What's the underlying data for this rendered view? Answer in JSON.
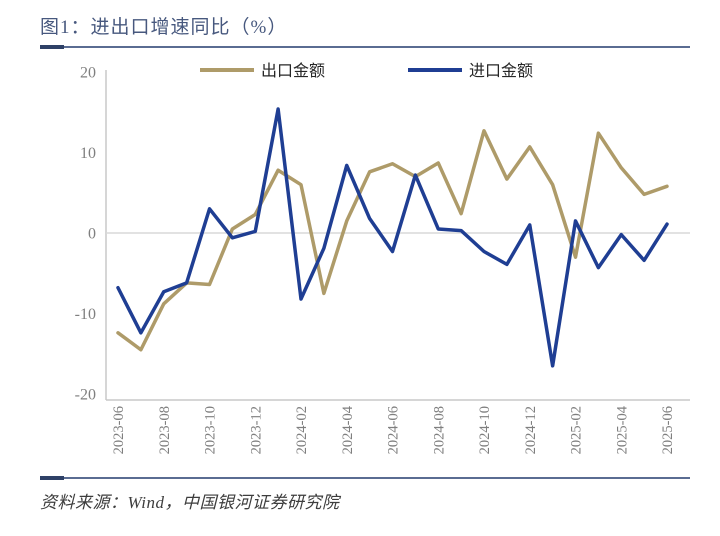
{
  "figure": {
    "title": "图1：进出口增速同比（%）",
    "source": "资料来源：Wind，中国银河证券研究院"
  },
  "legend": {
    "export_label": "出口金额",
    "import_label": "进口金额"
  },
  "colors": {
    "export": "#AE9B69",
    "import": "#1F3E93",
    "title_text": "#47587E",
    "source_text": "#3D3D3D",
    "tick_text": "#7F7F7F",
    "axis_line": "#C8C8C8",
    "zero_line": "#D9D9D9",
    "rule": "#5A6C92"
  },
  "chart_data": {
    "type": "line",
    "title": "进出口增速同比（%）",
    "xlabel": "",
    "ylabel": "",
    "ylim": [
      -20,
      20
    ],
    "yticks": [
      20,
      10,
      0,
      -10,
      -20
    ],
    "grid": "zero-line-only",
    "legend_position": "top",
    "x_tick_step": 2,
    "x": [
      "2023-06",
      "2023-07",
      "2023-08",
      "2023-09",
      "2023-10",
      "2023-11",
      "2023-12",
      "2024-01",
      "2024-02",
      "2024-03",
      "2024-04",
      "2024-05",
      "2024-06",
      "2024-07",
      "2024-08",
      "2024-09",
      "2024-10",
      "2024-11",
      "2024-12",
      "2025-01",
      "2025-02",
      "2025-03",
      "2025-04",
      "2025-05",
      "2025-06"
    ],
    "series": [
      {
        "name": "出口金额",
        "color_key": "export",
        "values": [
          -12.4,
          -14.5,
          -8.8,
          -6.2,
          -6.4,
          0.5,
          2.3,
          7.8,
          6.0,
          -7.5,
          1.5,
          7.6,
          8.6,
          7.0,
          8.7,
          2.4,
          12.7,
          6.7,
          10.7,
          6.0,
          -3.0,
          12.4,
          8.1,
          4.8,
          5.8
        ]
      },
      {
        "name": "进口金额",
        "color_key": "import",
        "values": [
          -6.8,
          -12.4,
          -7.3,
          -6.2,
          3.0,
          -0.6,
          0.2,
          15.4,
          -8.2,
          -1.9,
          8.4,
          1.8,
          -2.3,
          7.2,
          0.5,
          0.3,
          -2.3,
          -3.9,
          1.0,
          -16.5,
          1.5,
          -4.3,
          -0.2,
          -3.4,
          1.1
        ]
      }
    ]
  }
}
